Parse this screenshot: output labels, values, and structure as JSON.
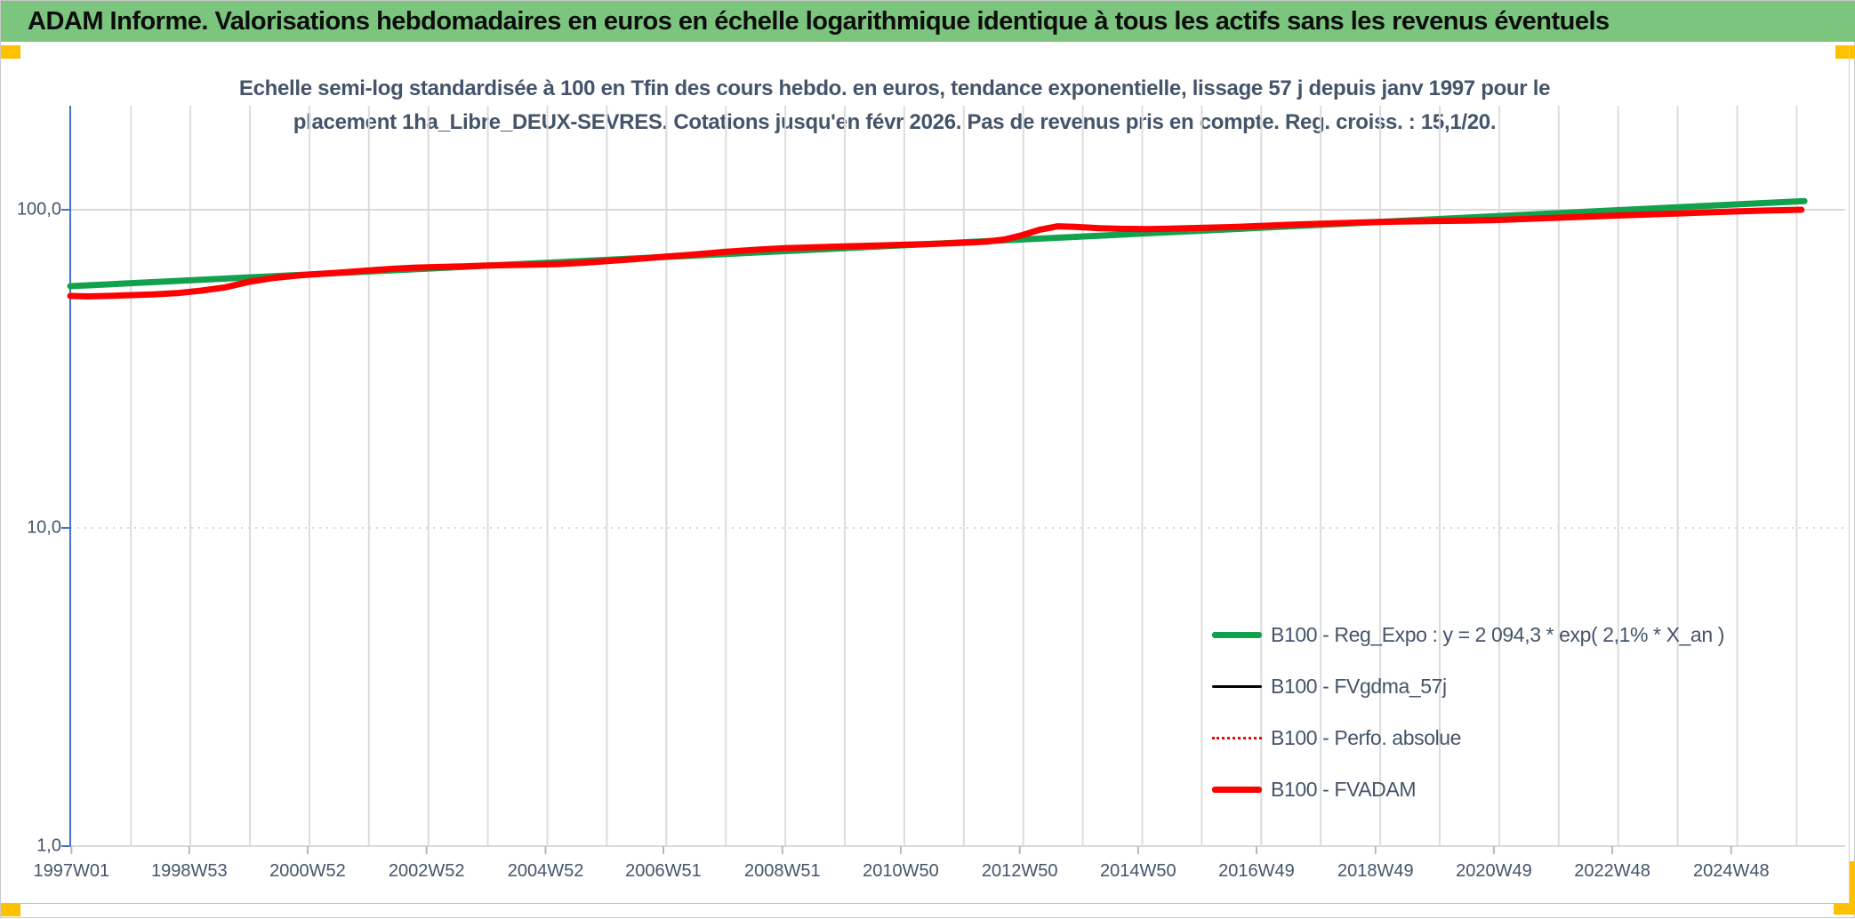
{
  "header": {
    "title": "ADAM Informe. Valorisations hebdomadaires en euros en échelle logarithmique identique à tous les actifs sans les revenus éventuels"
  },
  "accents": {
    "header_green": "#7CC57E",
    "marker_yellow": "#FFC000",
    "text_slate": "#44546A",
    "axis_blue": "#4472C4"
  },
  "chart": {
    "title_line1": "Echelle semi-log standardisée à 100 en Tfin des cours hebdo. en euros, tendance exponentielle, lissage 57 j depuis janv 1997 pour le",
    "title_line2": "placement 1ha_Libre_DEUX-SEVRES. Cotations jusqu'en févr 2026. Pas de revenus pris en compte. Reg. croiss. : 15,1/20."
  },
  "chart_data": {
    "type": "line",
    "y_axis": {
      "scale": "log",
      "ticks": [
        {
          "label": "100,0",
          "value": 100,
          "gridline": "solid"
        },
        {
          "label": "10,0",
          "value": 10,
          "gridline": "dotted"
        },
        {
          "label": "1,0",
          "value": 1,
          "gridline": "solid"
        }
      ],
      "range": [
        1,
        212
      ]
    },
    "x_axis": {
      "domain_years": [
        1997.0,
        2026.3
      ],
      "ticks": [
        "1997W01",
        "1998W53",
        "2000W52",
        "2002W52",
        "2004W52",
        "2006W51",
        "2008W51",
        "2010W50",
        "2012W50",
        "2014W50",
        "2016W49",
        "2018W49",
        "2020W49",
        "2022W48",
        "2024W48"
      ],
      "tick_years": [
        1997.02,
        1999.0,
        2000.99,
        2002.99,
        2004.99,
        2006.97,
        2008.97,
        2010.96,
        2012.96,
        2014.95,
        2016.94,
        2018.94,
        2020.93,
        2022.92,
        2024.92
      ],
      "gridlines_every_year": true
    },
    "legend_position": "bottom-right",
    "series": [
      {
        "name": "B100 - Reg_Expo : y = 2 094,3 * exp( 2,1% *  X_an )",
        "color": "#12A24D",
        "width": 7,
        "style": "solid",
        "points": [
          [
            1997.0,
            57.5
          ],
          [
            2026.15,
            106.5
          ]
        ]
      },
      {
        "name": "B100 - FVgdma_57j",
        "color": "#000000",
        "width": 3,
        "style": "solid",
        "points": [],
        "hidden_behind": "B100 - FVADAM"
      },
      {
        "name": "B100 - Perfo. absolue",
        "color": "#FF0000",
        "width": 2,
        "style": "dotted",
        "points": [],
        "hidden_behind": "B100 - FVADAM"
      },
      {
        "name": "B100 - FVADAM",
        "color": "#FF0000",
        "width": 7,
        "style": "solid",
        "points": [
          [
            1997.0,
            53.6
          ],
          [
            1997.3,
            53.4
          ],
          [
            1997.6,
            53.6
          ],
          [
            1998.0,
            53.9
          ],
          [
            1998.4,
            54.2
          ],
          [
            1998.8,
            54.7
          ],
          [
            1999.2,
            55.7
          ],
          [
            1999.6,
            57.0
          ],
          [
            2000.0,
            59.3
          ],
          [
            2000.4,
            61.0
          ],
          [
            2000.8,
            62.1
          ],
          [
            2001.2,
            62.9
          ],
          [
            2001.6,
            63.6
          ],
          [
            2002.0,
            64.4
          ],
          [
            2002.4,
            65.2
          ],
          [
            2002.8,
            65.8
          ],
          [
            2003.2,
            66.1
          ],
          [
            2003.6,
            66.4
          ],
          [
            2004.0,
            66.8
          ],
          [
            2004.4,
            67.0
          ],
          [
            2004.8,
            67.2
          ],
          [
            2005.2,
            67.5
          ],
          [
            2005.6,
            68.1
          ],
          [
            2006.0,
            68.9
          ],
          [
            2006.5,
            70.0
          ],
          [
            2007.0,
            71.2
          ],
          [
            2007.5,
            72.4
          ],
          [
            2008.0,
            73.7
          ],
          [
            2008.5,
            74.8
          ],
          [
            2009.0,
            75.7
          ],
          [
            2009.5,
            76.2
          ],
          [
            2010.0,
            76.7
          ],
          [
            2010.5,
            77.1
          ],
          [
            2011.0,
            77.6
          ],
          [
            2011.5,
            78.1
          ],
          [
            2012.0,
            78.7
          ],
          [
            2012.4,
            79.4
          ],
          [
            2012.7,
            80.6
          ],
          [
            2013.0,
            83.2
          ],
          [
            2013.3,
            86.6
          ],
          [
            2013.6,
            88.7
          ],
          [
            2013.9,
            88.3
          ],
          [
            2014.3,
            87.5
          ],
          [
            2014.7,
            87.1
          ],
          [
            2015.1,
            87.0
          ],
          [
            2015.5,
            87.2
          ],
          [
            2016.0,
            87.7
          ],
          [
            2016.5,
            88.2
          ],
          [
            2017.0,
            88.9
          ],
          [
            2017.5,
            89.7
          ],
          [
            2018.0,
            90.4
          ],
          [
            2018.5,
            91.0
          ],
          [
            2019.0,
            91.5
          ],
          [
            2019.5,
            91.9
          ],
          [
            2020.0,
            92.2
          ],
          [
            2020.5,
            92.4
          ],
          [
            2021.0,
            92.9
          ],
          [
            2021.5,
            93.6
          ],
          [
            2022.0,
            94.4
          ],
          [
            2022.5,
            95.1
          ],
          [
            2023.0,
            95.9
          ],
          [
            2023.5,
            96.6
          ],
          [
            2024.0,
            97.3
          ],
          [
            2024.5,
            98.1
          ],
          [
            2025.0,
            98.8
          ],
          [
            2025.5,
            99.4
          ],
          [
            2026.1,
            100.0
          ]
        ]
      }
    ]
  }
}
